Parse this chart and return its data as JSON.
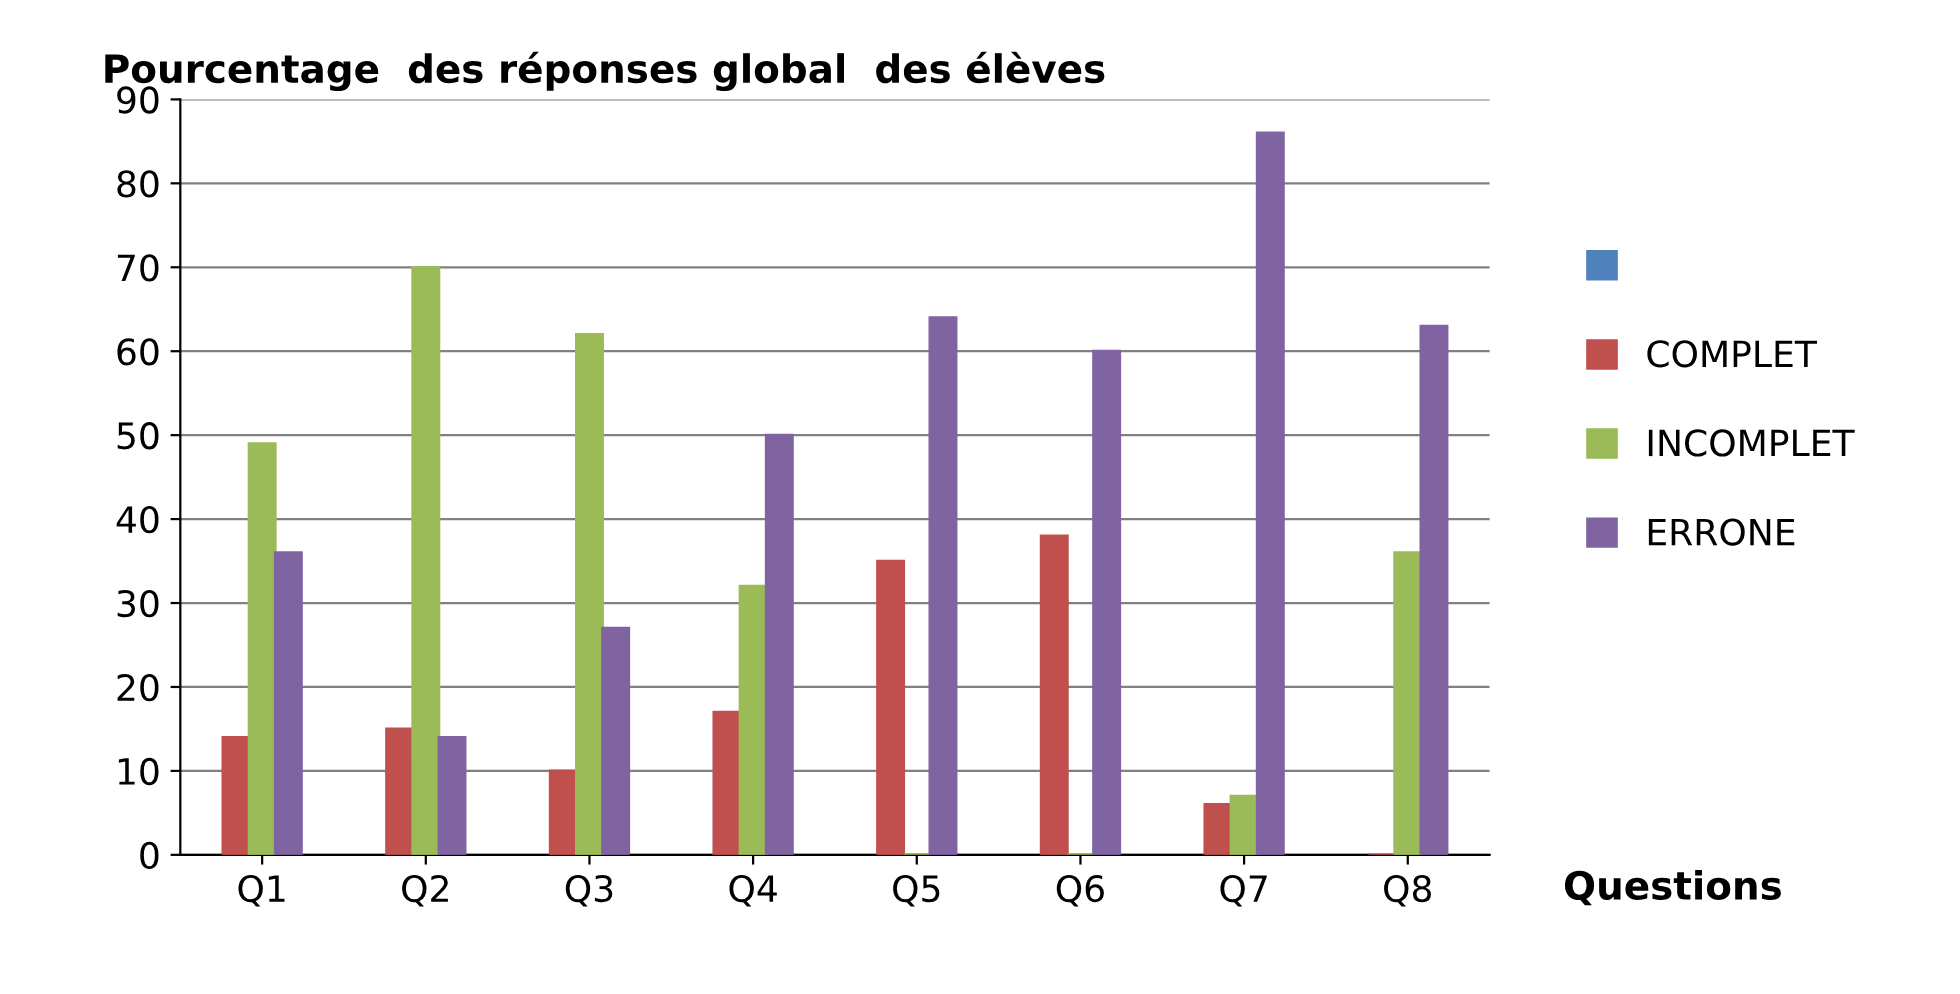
{
  "chart_data": {
    "type": "bar",
    "title": "Pourcentage  des réponses global  des élèves",
    "xlabel": "Questions",
    "categories": [
      "Q1",
      "Q2",
      "Q3",
      "Q4",
      "Q5",
      "Q6",
      "Q7",
      "Q8"
    ],
    "series": [
      {
        "color": "#4f81bd",
        "values": [
          null,
          null,
          null,
          null,
          null,
          null,
          null,
          null
        ]
      },
      {
        "name": "COMPLET",
        "color": "#c0504d",
        "values": [
          14,
          15,
          10,
          17,
          35,
          38,
          6,
          0
        ]
      },
      {
        "name": "INCOMPLET",
        "color": "#9bbb59",
        "values": [
          49,
          70,
          62,
          32,
          0,
          0,
          7,
          36
        ]
      },
      {
        "name": "ERRONE",
        "color": "#8064a2",
        "values": [
          36,
          14,
          27,
          50,
          64,
          60,
          86,
          63
        ]
      }
    ],
    "ylim": [
      0,
      90
    ],
    "yticks": [
      0,
      10,
      20,
      30,
      40,
      50,
      60,
      70,
      80,
      90
    ],
    "grid": "y",
    "legend": "right"
  }
}
